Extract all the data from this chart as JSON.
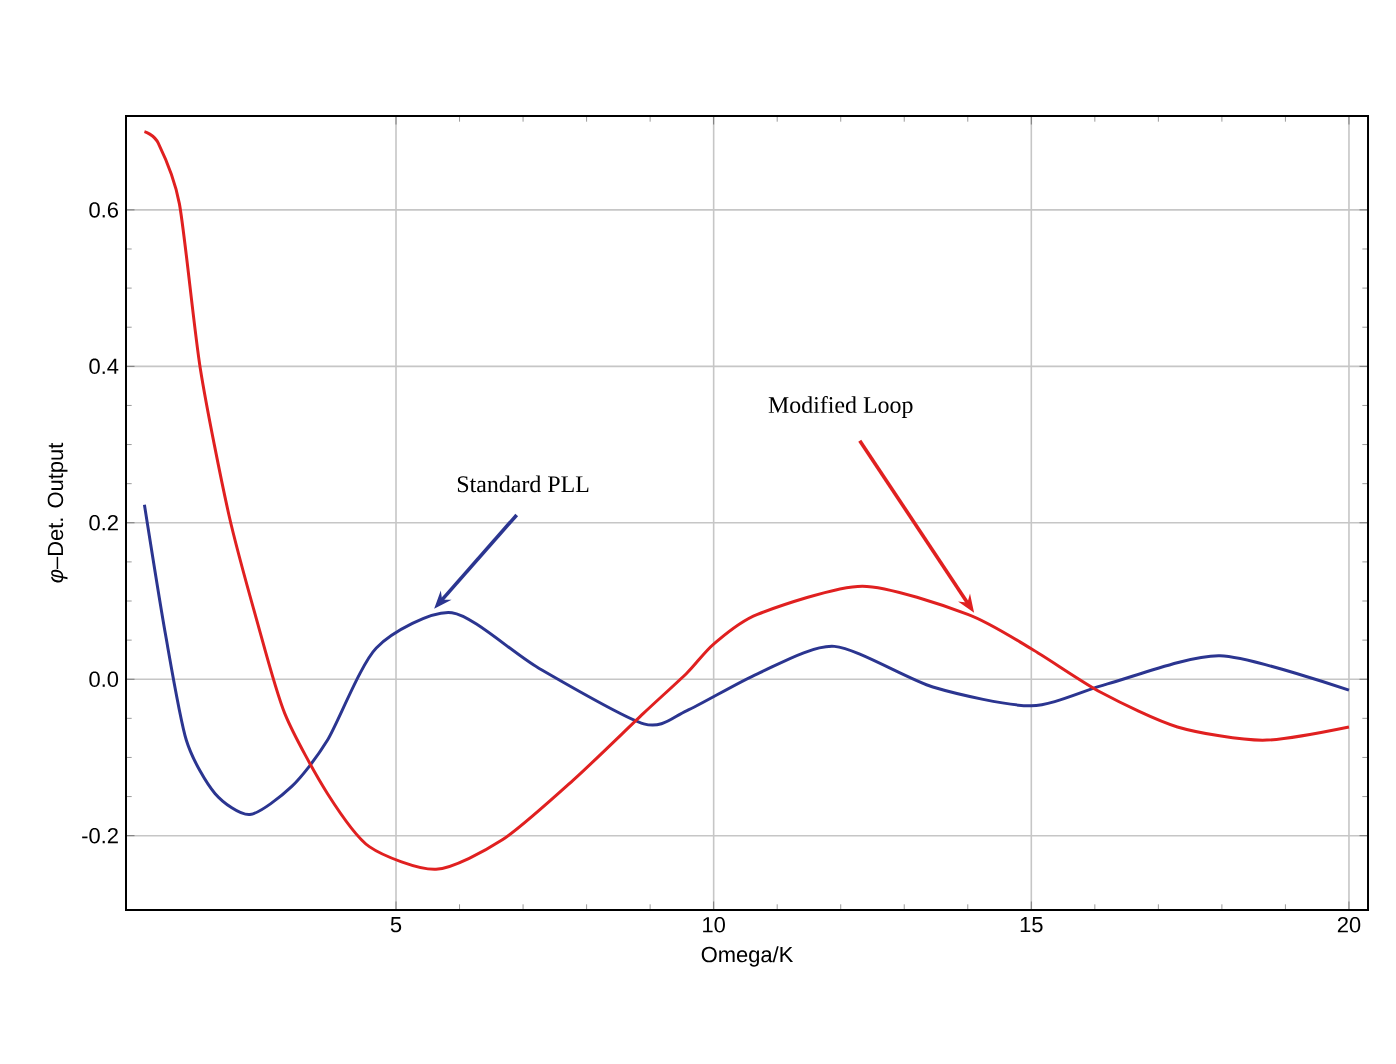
{
  "chart_data": {
    "type": "line",
    "xlabel": "Omega/K",
    "ylabel": "*φ*–Det. Output",
    "xlim": [
      0.75,
      20.3
    ],
    "ylim": [
      -0.295,
      0.72
    ],
    "xticks": [
      5,
      10,
      15,
      20
    ],
    "yticks": [
      -0.2,
      {
        "value": 0,
        "label": "0.0"
      },
      0.2,
      0.4,
      0.6
    ],
    "grid": true,
    "marker": "none",
    "line_style": "solid",
    "series": [
      {
        "color": "#2b3590",
        "x": [
          1.04,
          1.37,
          1.7,
          2.15,
          2.7,
          3.36,
          3.92,
          4.69,
          5.88,
          7.23,
          8.9,
          9.58,
          10.69,
          11.9,
          13.45,
          15.0,
          16.2,
          17.97,
          20.0
        ],
        "values": [
          0.223,
          0.058,
          -0.078,
          -0.146,
          -0.173,
          -0.137,
          -0.078,
          0.04,
          0.085,
          0.015,
          -0.057,
          -0.04,
          0.007,
          0.042,
          -0.01,
          -0.034,
          -0.006,
          0.03,
          -0.014
        ]
      },
      {
        "color": "#e02020",
        "x": [
          1.04,
          1.26,
          1.59,
          1.92,
          2.37,
          2.81,
          3.25,
          3.92,
          4.58,
          5.63,
          6.68,
          7.79,
          8.89,
          9.58,
          10.0,
          10.69,
          12.34,
          14.0,
          15.0,
          16.1,
          17.3,
          18.64,
          20.0
        ],
        "values": [
          0.7,
          0.685,
          0.608,
          0.397,
          0.21,
          0.075,
          -0.044,
          -0.146,
          -0.214,
          -0.243,
          -0.205,
          -0.129,
          -0.044,
          0.008,
          0.045,
          0.083,
          0.119,
          0.083,
          0.039,
          -0.017,
          -0.061,
          -0.078,
          -0.061
        ]
      }
    ],
    "annotations": [
      {
        "text": "Standard PLL",
        "x": 5.6,
        "y": 0.09
      },
      {
        "text": "Modified Loop",
        "x": 14.1,
        "y": 0.085
      }
    ]
  }
}
